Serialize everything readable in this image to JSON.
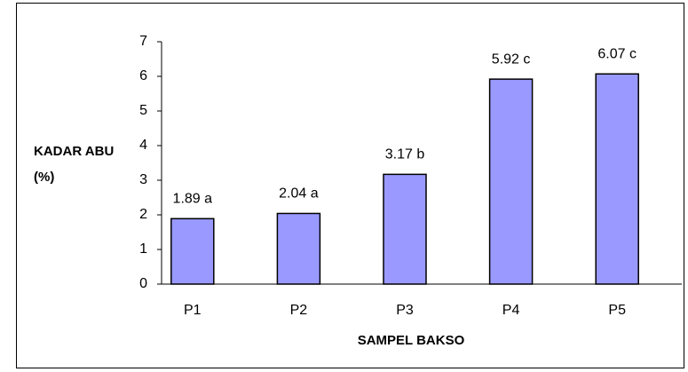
{
  "chart_data": {
    "type": "bar",
    "xlabel": "SAMPEL BAKSO",
    "ylabel": "KADAR ABU (%)",
    "categories": [
      "P1",
      "P2",
      "P3",
      "P4",
      "P5"
    ],
    "values": [
      1.89,
      2.04,
      3.17,
      5.92,
      6.07
    ],
    "value_labels": [
      "1.89 a",
      "2.04 a",
      "3.17 b",
      "5.92 c",
      "6.07 c"
    ],
    "color": "#9999ff",
    "ylim": [
      0,
      7
    ],
    "yticks": [
      0,
      1,
      2,
      3,
      4,
      5,
      6,
      7
    ],
    "grid": false
  }
}
